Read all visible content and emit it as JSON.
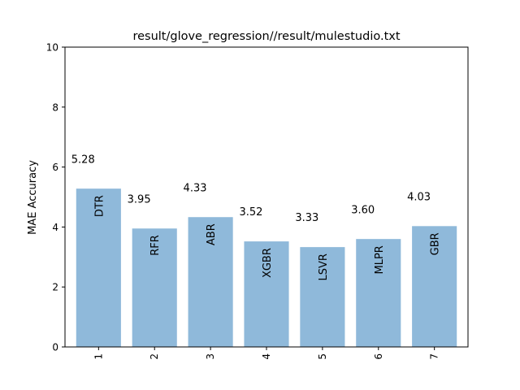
{
  "chart_data": {
    "type": "bar",
    "title": "result/glove_regression//result/mulestudio.txt",
    "xlabel": "",
    "ylabel": "MAE Accuracy",
    "categories": [
      "1",
      "2",
      "3",
      "4",
      "5",
      "6",
      "7"
    ],
    "bar_names": [
      "DTR",
      "RFR",
      "ABR",
      "XGBR",
      "LSVR",
      "MLPR",
      "GBR"
    ],
    "values": [
      5.28,
      3.95,
      4.33,
      3.52,
      3.33,
      3.6,
      4.03
    ],
    "value_labels": [
      "5.28",
      "3.95",
      "4.33",
      "3.52",
      "3.33",
      "3.60",
      "4.03"
    ],
    "ylim": [
      0,
      10
    ],
    "yticks": [
      "0",
      "2",
      "4",
      "6",
      "8",
      "10"
    ],
    "grid": false,
    "bar_color": "#8fb9da"
  }
}
